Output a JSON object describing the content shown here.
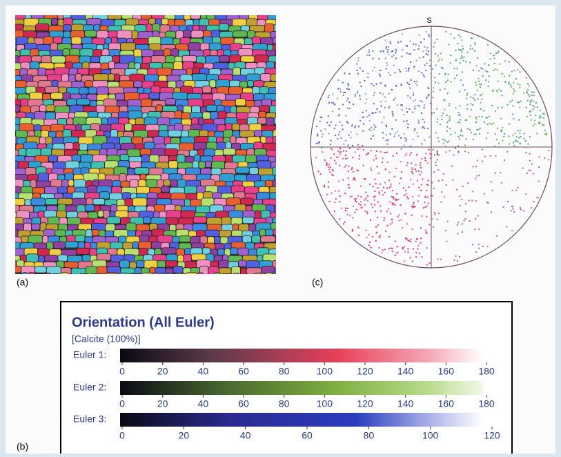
{
  "panels": {
    "a": "(a)",
    "b": "(b)",
    "c": "(c)"
  },
  "pole_figure": {
    "top": "S",
    "center": "L"
  },
  "legend": {
    "title": "Orientation (All Euler)",
    "subtitle": "[Calcite (100%)]",
    "scales": [
      {
        "label": "Euler 1:",
        "ticks": [
          0,
          20,
          40,
          60,
          80,
          100,
          120,
          140,
          160,
          180
        ]
      },
      {
        "label": "Euler 2:",
        "ticks": [
          0,
          20,
          40,
          60,
          80,
          100,
          120,
          140,
          160,
          180
        ]
      },
      {
        "label": "Euler 3:",
        "ticks": [
          0,
          20,
          40,
          60,
          80,
          100,
          120
        ]
      }
    ]
  }
}
